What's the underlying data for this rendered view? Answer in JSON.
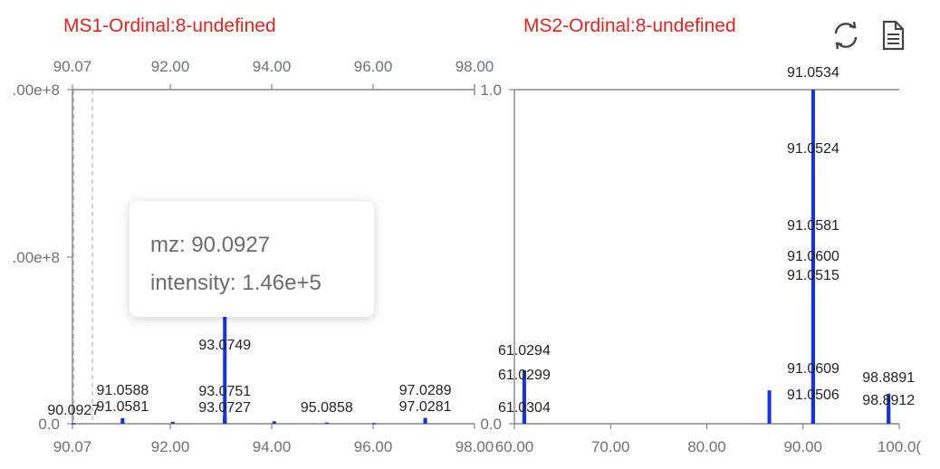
{
  "ms1": {
    "title": "MS1-Ordinal:8-undefined",
    "chart_data": {
      "type": "bar",
      "xlim": [
        90.07,
        98.0
      ],
      "x_tick_labels": [
        "90.07",
        "92.00",
        "94.00",
        "96.00",
        "98.00"
      ],
      "y_tick_labels": [
        ".00e+8",
        ".00e+8",
        "0.0"
      ],
      "peaks": [
        {
          "mz": 90.0927,
          "intensity": 146000,
          "label": "90.0927"
        },
        {
          "mz": 91.0588,
          "intensity": 1150000,
          "label": "91.0588"
        },
        {
          "mz": 91.0581,
          "intensity": 700000,
          "label": "91.0581"
        },
        {
          "mz": 92.05,
          "intensity": 400000
        },
        {
          "mz": 93.0749,
          "intensity": 33000000,
          "label": "93.0749"
        },
        {
          "mz": 93.0751,
          "intensity": 1600000,
          "label": "93.0751"
        },
        {
          "mz": 93.0727,
          "intensity": 1000000,
          "label": "93.0727"
        },
        {
          "mz": 94.05,
          "intensity": 500000
        },
        {
          "mz": 95.0858,
          "intensity": 250000,
          "label": "95.0858"
        },
        {
          "mz": 96.02,
          "intensity": 150000
        },
        {
          "mz": 97.0289,
          "intensity": 1200000,
          "label": "97.0289"
        },
        {
          "mz": 97.0281,
          "intensity": 800000,
          "label": "97.0281"
        }
      ],
      "cursor_mz": 90.0927
    },
    "tooltip": {
      "mz_text": "mz: 90.0927",
      "intensity_text": "intensity: 1.46e+5"
    }
  },
  "ms2": {
    "title": "MS2-Ordinal:8-undefined",
    "chart_data": {
      "type": "bar",
      "xlim": [
        60.0,
        100.0
      ],
      "ylim": [
        0,
        1.0
      ],
      "x_tick_labels": [
        "60.00",
        "70.00",
        "80.00",
        "90.00",
        "100.0("
      ],
      "y_tick_labels": [
        "1.0",
        "0.0"
      ],
      "peaks": [
        {
          "mz": 61.0294,
          "intensity": 0.16,
          "label": "61.0294"
        },
        {
          "mz": 61.0299,
          "intensity": 0.1,
          "label": "61.0299"
        },
        {
          "mz": 61.0304,
          "intensity": 0.05,
          "label": "61.0304"
        },
        {
          "mz": 86.5,
          "intensity": 0.1
        },
        {
          "mz": 91.0534,
          "intensity": 1.0,
          "label": "91.0534"
        },
        {
          "mz": 91.0524,
          "intensity": 0.75,
          "label": "91.0524"
        },
        {
          "mz": 91.0581,
          "intensity": 0.52,
          "label": "91.0581"
        },
        {
          "mz": 91.06,
          "intensity": 0.44,
          "label": "91.0600"
        },
        {
          "mz": 91.0515,
          "intensity": 0.36,
          "label": "91.0515"
        },
        {
          "mz": 91.0609,
          "intensity": 0.14,
          "label": "91.0609"
        },
        {
          "mz": 91.0506,
          "intensity": 0.07,
          "label": "91.0506"
        },
        {
          "mz": 98.8891,
          "intensity": 0.09,
          "label": "98.8891"
        },
        {
          "mz": 98.8912,
          "intensity": 0.05,
          "label": "98.8912"
        }
      ]
    }
  },
  "colors": {
    "title": "#e8211c",
    "peak": "#1433e6",
    "axis": "#6e7079",
    "cursor": "#b5b5b5"
  },
  "toolbar": {
    "refresh_icon": "refresh-icon",
    "document_icon": "document-icon"
  }
}
